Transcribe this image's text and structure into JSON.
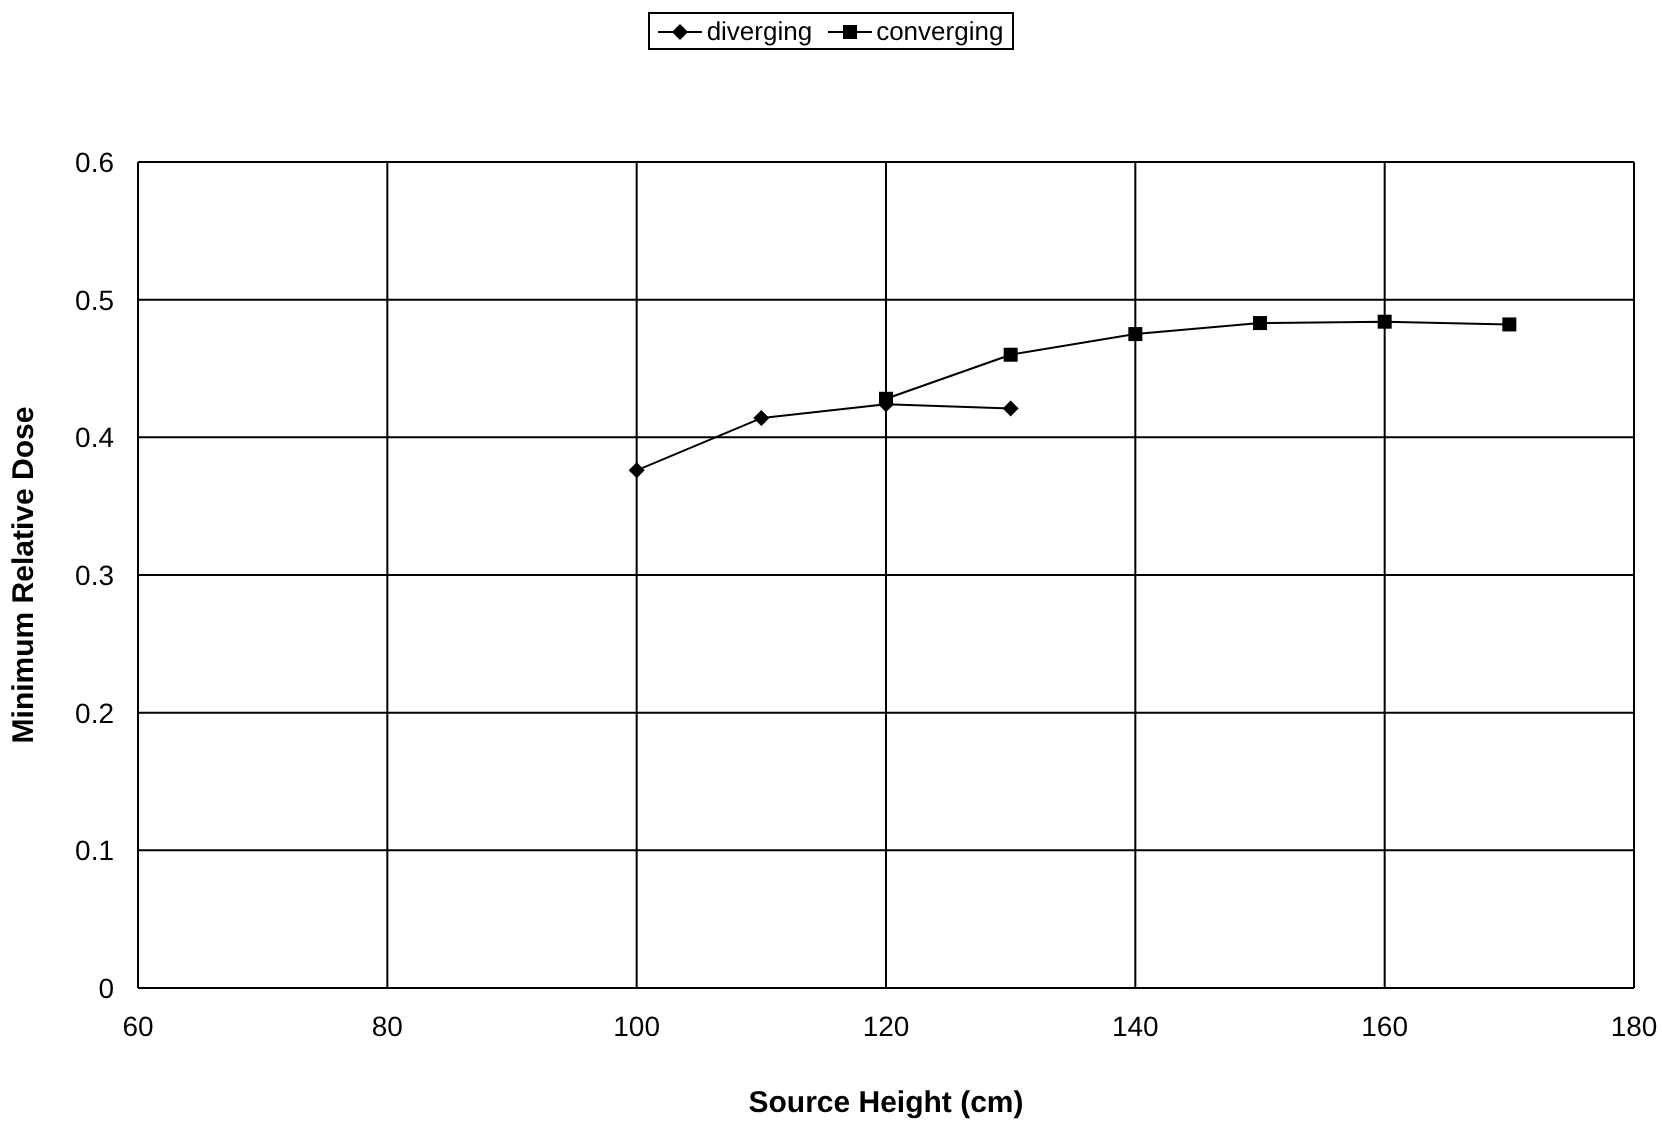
{
  "chart_data": {
    "type": "line",
    "xlabel": "Source Height (cm)",
    "ylabel": "Minimum Relative Dose",
    "xlim": [
      60,
      180
    ],
    "xticks": [
      60,
      80,
      100,
      120,
      140,
      160,
      180
    ],
    "ylim": [
      0,
      0.6
    ],
    "yticks": [
      0,
      0.1,
      0.2,
      0.3,
      0.4,
      0.5,
      0.6
    ],
    "grid": true,
    "legend": "top",
    "line_style": "solid",
    "series": [
      {
        "name": "diverging",
        "color": "#000000",
        "marker": "diamond",
        "x": [
          100,
          110,
          120,
          130
        ],
        "values": [
          0.376,
          0.414,
          0.424,
          0.421
        ]
      },
      {
        "name": "converging",
        "color": "#000000",
        "marker": "square",
        "x": [
          120,
          130,
          140,
          150,
          160,
          170
        ],
        "values": [
          0.428,
          0.46,
          0.475,
          0.483,
          0.484,
          0.482
        ]
      }
    ]
  }
}
